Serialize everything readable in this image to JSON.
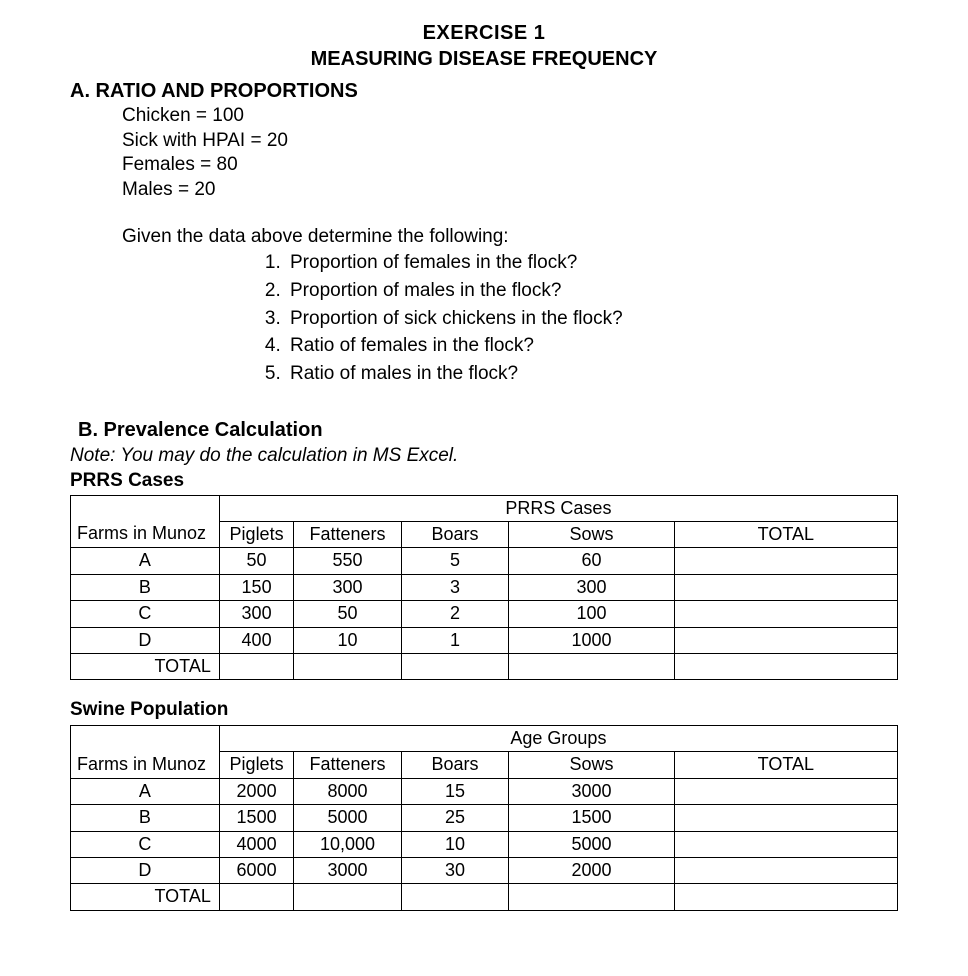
{
  "title1": "EXERCISE 1",
  "title2": "MEASURING DISEASE FREQUENCY",
  "sectionA": {
    "heading": "A.  RATIO AND PROPORTIONS",
    "givens": [
      "Chicken = 100",
      "Sick with HPAI = 20",
      "Females = 80",
      "Males = 20"
    ],
    "prompt": "Given the data above determine the following:",
    "questions": [
      "Proportion of females in the flock?",
      "Proportion of males in the flock?",
      "Proportion of sick chickens in the flock?",
      "Ratio of females in the flock?",
      "Ratio of males in the flock?"
    ]
  },
  "sectionB": {
    "heading": "B.  Prevalence Calculation",
    "note": "Note: You may do the calculation in MS Excel.",
    "table1": {
      "title": "PRRS Cases",
      "group_label": "PRRS Cases",
      "row_header": "Farms in Munoz",
      "columns": [
        "Piglets",
        "Fatteners",
        "Boars",
        "Sows",
        "TOTAL"
      ],
      "col_widths_pct": [
        18,
        9,
        13,
        13,
        20,
        27
      ],
      "col_align": [
        "center",
        "center",
        "center",
        "center",
        "center",
        "center"
      ],
      "rows": [
        {
          "name": "A",
          "cells": [
            "50",
            "550",
            "5",
            "60",
            ""
          ]
        },
        {
          "name": "B",
          "cells": [
            "150",
            "300",
            "3",
            "300",
            ""
          ]
        },
        {
          "name": "C",
          "cells": [
            "300",
            "50",
            "2",
            "100",
            ""
          ]
        },
        {
          "name": "D",
          "cells": [
            "400",
            "10",
            "1",
            "1000",
            ""
          ]
        }
      ],
      "total_label": "TOTAL"
    },
    "table2": {
      "title": "Swine Population",
      "group_label": "Age Groups",
      "row_header": "Farms in Munoz",
      "columns": [
        "Piglets",
        "Fatteners",
        "Boars",
        "Sows",
        "TOTAL"
      ],
      "col_widths_pct": [
        18,
        9,
        13,
        13,
        20,
        27
      ],
      "col_align": [
        "center",
        "center",
        "center",
        "center",
        "center",
        "center"
      ],
      "rows": [
        {
          "name": "A",
          "cells": [
            "2000",
            "8000",
            "15",
            "3000",
            ""
          ]
        },
        {
          "name": "B",
          "cells": [
            "1500",
            "5000",
            "25",
            "1500",
            ""
          ]
        },
        {
          "name": "C",
          "cells": [
            "4000",
            "10,000",
            "10",
            "5000",
            ""
          ]
        },
        {
          "name": "D",
          "cells": [
            "6000",
            "3000",
            "30",
            "2000",
            ""
          ]
        }
      ],
      "total_label": "TOTAL"
    }
  },
  "colors": {
    "text": "#000000",
    "background": "#ffffff",
    "border": "#000000"
  },
  "typography": {
    "font_family": "Arial",
    "title_fontsize": 20,
    "body_fontsize": 19,
    "table_fontsize": 18
  }
}
